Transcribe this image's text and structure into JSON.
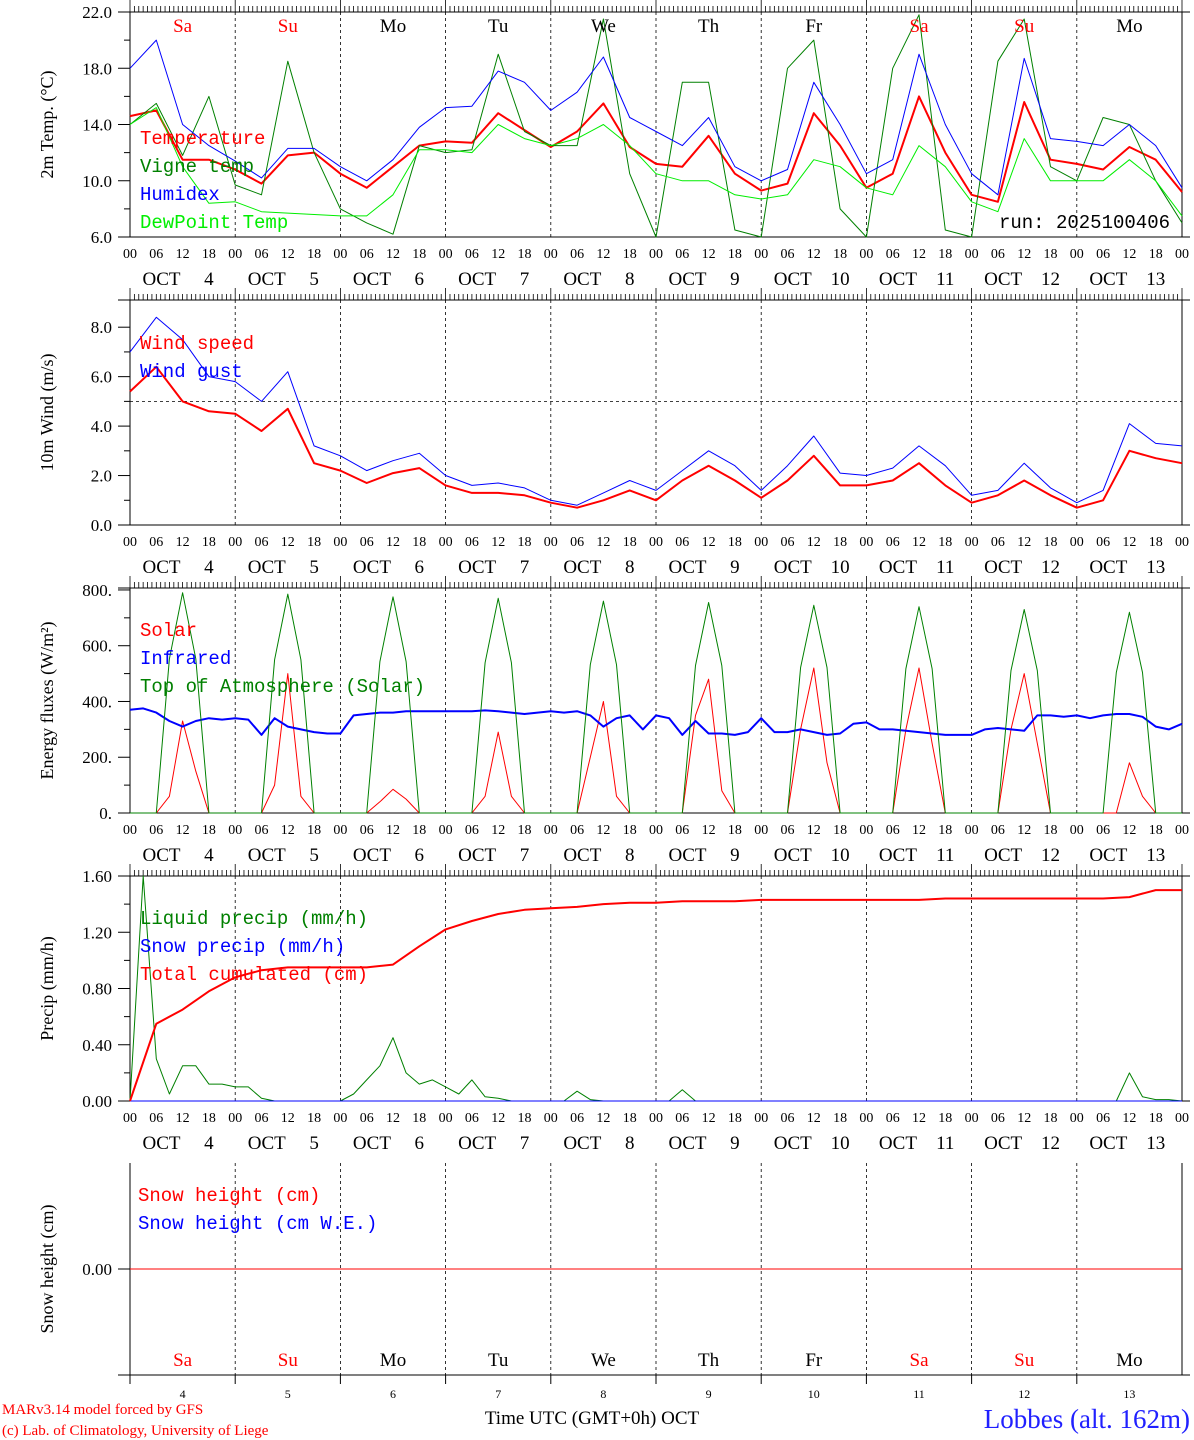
{
  "chart_data": [
    {
      "type": "line",
      "ylabel": "2m Temp. (°C)",
      "ylim": [
        6,
        22
      ],
      "yticks": [
        "6.0",
        "10.0",
        "14.0",
        "18.0",
        "22.0"
      ],
      "x_step_hours": 6,
      "annotation": "run: 2025100406",
      "series": [
        {
          "name": "Temperature",
          "color": "#ff0000",
          "width": 2,
          "values": [
            14.6,
            15.0,
            11.5,
            11.5,
            10.8,
            9.8,
            11.8,
            12.0,
            10.5,
            9.5,
            11.0,
            12.5,
            12.8,
            12.7,
            14.8,
            13.6,
            12.4,
            13.5,
            15.5,
            12.4,
            11.2,
            11.0,
            13.2,
            10.5,
            9.3,
            9.8,
            14.8,
            12.5,
            9.5,
            10.5,
            16.0,
            12.0,
            9.0,
            8.5,
            15.6,
            11.5,
            11.2,
            10.8,
            12.4,
            11.5,
            9.2
          ]
        },
        {
          "name": "Vigne temp",
          "color": "#008000",
          "width": 1,
          "values": [
            14.0,
            15.5,
            11.8,
            16.0,
            9.7,
            9.0,
            18.5,
            12.0,
            8.0,
            7.0,
            6.2,
            12.5,
            12.0,
            12.2,
            19.0,
            13.5,
            12.5,
            12.5,
            21.5,
            10.5,
            6.0,
            17.0,
            17.0,
            6.5,
            6.0,
            18.0,
            20.0,
            8.0,
            6.0,
            18.0,
            21.8,
            6.5,
            6.0,
            18.5,
            21.5,
            11.0,
            10.0,
            14.5,
            14.0,
            10.0,
            7.0
          ]
        },
        {
          "name": "Humidex",
          "color": "#0000ff",
          "width": 1,
          "values": [
            18.0,
            20.0,
            14.0,
            12.5,
            11.4,
            10.2,
            12.3,
            12.3,
            11.0,
            10.0,
            11.5,
            13.8,
            15.2,
            15.3,
            17.8,
            17.0,
            15.0,
            16.3,
            18.8,
            14.5,
            13.5,
            12.5,
            14.5,
            11.0,
            10.0,
            10.8,
            17.0,
            14.0,
            10.5,
            11.5,
            19.0,
            14.0,
            10.5,
            9.0,
            18.7,
            13.0,
            12.8,
            12.5,
            14.0,
            12.5,
            9.5
          ]
        },
        {
          "name": "DewPoint Temp",
          "color": "#00ee00",
          "width": 1,
          "values": [
            14.0,
            15.2,
            11.0,
            8.4,
            8.5,
            7.8,
            7.7,
            7.6,
            7.5,
            7.5,
            9.0,
            12.2,
            12.2,
            12.0,
            14.0,
            13.0,
            12.5,
            13.0,
            14.0,
            12.5,
            10.5,
            10.0,
            10.0,
            9.0,
            8.7,
            9.0,
            11.5,
            11.0,
            9.5,
            9.0,
            12.5,
            11.0,
            8.5,
            7.8,
            13.0,
            10.0,
            10.0,
            10.0,
            11.5,
            10.0,
            7.5
          ]
        }
      ]
    },
    {
      "type": "line",
      "ylabel": "10m Wind (m/s)",
      "ylim": [
        0,
        9.1
      ],
      "yticks": [
        "0.0",
        "2.0",
        "4.0",
        "6.0",
        "8.0"
      ],
      "reference_line": 5.0,
      "x_step_hours": 6,
      "series": [
        {
          "name": "Wind speed",
          "color": "#ff0000",
          "width": 2,
          "values": [
            5.4,
            6.4,
            5.0,
            4.6,
            4.5,
            3.8,
            4.7,
            2.5,
            2.2,
            1.7,
            2.1,
            2.3,
            1.6,
            1.3,
            1.3,
            1.2,
            0.9,
            0.7,
            1.0,
            1.4,
            1.0,
            1.8,
            2.4,
            1.8,
            1.1,
            1.8,
            2.8,
            1.6,
            1.6,
            1.8,
            2.5,
            1.6,
            0.9,
            1.2,
            1.8,
            1.2,
            0.7,
            1.0,
            3.0,
            2.7,
            2.5
          ]
        },
        {
          "name": "Wind gust",
          "color": "#0000ff",
          "width": 1,
          "values": [
            7.0,
            8.4,
            7.5,
            6.0,
            5.8,
            5.0,
            6.2,
            3.2,
            2.8,
            2.2,
            2.6,
            2.9,
            2.0,
            1.6,
            1.7,
            1.5,
            1.0,
            0.8,
            1.3,
            1.8,
            1.4,
            2.2,
            3.0,
            2.4,
            1.4,
            2.4,
            3.6,
            2.1,
            2.0,
            2.3,
            3.2,
            2.4,
            1.2,
            1.4,
            2.5,
            1.5,
            0.9,
            1.4,
            4.1,
            3.3,
            3.2
          ]
        }
      ]
    },
    {
      "type": "line",
      "ylabel": "Energy fluxes (W/m²)",
      "ylim": [
        0,
        807
      ],
      "yticks": [
        "0.",
        "200.",
        "400.",
        "600.",
        "800."
      ],
      "x_step_hours": 3,
      "series": [
        {
          "name": "Solar",
          "color": "#ff0000",
          "width": 1,
          "values": [
            0,
            0,
            0,
            60,
            330,
            150,
            0,
            0,
            0,
            0,
            0,
            100,
            500,
            60,
            0,
            0,
            0,
            0,
            0,
            40,
            85,
            50,
            0,
            0,
            0,
            0,
            0,
            60,
            290,
            60,
            0,
            0,
            0,
            0,
            0,
            200,
            400,
            60,
            0,
            0,
            0,
            0,
            0,
            350,
            480,
            80,
            0,
            0,
            0,
            0,
            0,
            300,
            520,
            180,
            0,
            0,
            0,
            0,
            0,
            300,
            520,
            250,
            0,
            0,
            0,
            0,
            0,
            300,
            500,
            250,
            0,
            0,
            0,
            0,
            0,
            0,
            180,
            60,
            0,
            0,
            0
          ]
        },
        {
          "name": "Infrared",
          "color": "#0000ff",
          "width": 2,
          "values": [
            370,
            375,
            360,
            330,
            310,
            330,
            340,
            335,
            340,
            335,
            280,
            340,
            310,
            300,
            290,
            285,
            285,
            350,
            355,
            360,
            360,
            365,
            365,
            365,
            365,
            365,
            365,
            368,
            365,
            360,
            355,
            360,
            365,
            360,
            365,
            350,
            310,
            340,
            350,
            300,
            350,
            340,
            280,
            330,
            285,
            285,
            280,
            290,
            340,
            290,
            290,
            300,
            290,
            280,
            285,
            320,
            325,
            300,
            300,
            295,
            290,
            285,
            280,
            280,
            280,
            300,
            305,
            300,
            295,
            350,
            350,
            345,
            350,
            340,
            350,
            355,
            355,
            345,
            310,
            300,
            320
          ]
        },
        {
          "name": "Top of Atmosphere (Solar)",
          "color": "#008000",
          "width": 1,
          "values": [
            0,
            0,
            0,
            553,
            790,
            553,
            0,
            0,
            0,
            0,
            0,
            550,
            785,
            550,
            0,
            0,
            0,
            0,
            0,
            543,
            775,
            543,
            0,
            0,
            0,
            0,
            0,
            539,
            770,
            539,
            0,
            0,
            0,
            0,
            0,
            532,
            760,
            532,
            0,
            0,
            0,
            0,
            0,
            529,
            755,
            529,
            0,
            0,
            0,
            0,
            0,
            522,
            745,
            522,
            0,
            0,
            0,
            0,
            0,
            518,
            740,
            518,
            0,
            0,
            0,
            0,
            0,
            511,
            730,
            511,
            0,
            0,
            0,
            0,
            0,
            504,
            720,
            504,
            0,
            0,
            0
          ]
        }
      ]
    },
    {
      "type": "line",
      "ylabel": "Precip (mm/h)",
      "ylim": [
        0,
        1.6
      ],
      "yticks": [
        "0.00",
        "0.40",
        "0.80",
        "1.20",
        "1.60"
      ],
      "x_step_hours": 3,
      "series": [
        {
          "name": "Liquid precip (mm/h)",
          "color": "#008000",
          "width": 1,
          "values": [
            0,
            1.65,
            0.3,
            0.05,
            0.25,
            0.25,
            0.12,
            0.12,
            0.1,
            0.1,
            0.02,
            0,
            0,
            0,
            0,
            0,
            0,
            0.05,
            0.15,
            0.25,
            0.45,
            0.2,
            0.12,
            0.15,
            0.1,
            0.05,
            0.15,
            0.03,
            0.02,
            0,
            0,
            0,
            0,
            0,
            0.07,
            0.01,
            0,
            0,
            0,
            0,
            0,
            0,
            0.08,
            0,
            0,
            0,
            0,
            0,
            0,
            0,
            0,
            0,
            0,
            0,
            0,
            0,
            0,
            0,
            0,
            0,
            0,
            0,
            0,
            0,
            0,
            0,
            0,
            0,
            0,
            0,
            0,
            0,
            0,
            0,
            0,
            0,
            0.2,
            0.03,
            0.01,
            0.01,
            0
          ]
        },
        {
          "name": "Snow precip (mm/h)",
          "color": "#0000ff",
          "width": 1,
          "values": [
            0,
            0,
            0,
            0,
            0,
            0,
            0,
            0,
            0,
            0,
            0,
            0,
            0,
            0,
            0,
            0,
            0,
            0,
            0,
            0,
            0,
            0,
            0,
            0,
            0,
            0,
            0,
            0,
            0,
            0,
            0,
            0,
            0,
            0,
            0,
            0,
            0,
            0,
            0,
            0,
            0,
            0,
            0,
            0,
            0,
            0,
            0,
            0,
            0,
            0,
            0,
            0,
            0,
            0,
            0,
            0,
            0,
            0,
            0,
            0,
            0,
            0,
            0,
            0,
            0,
            0,
            0,
            0,
            0,
            0,
            0,
            0,
            0,
            0,
            0,
            0,
            0,
            0,
            0,
            0,
            0
          ]
        },
        {
          "name": "Total cumulated (cm)",
          "color": "#ff0000",
          "width": 2,
          "step": 6,
          "values": [
            0,
            0.55,
            0.65,
            0.78,
            0.88,
            0.93,
            0.95,
            0.95,
            0.95,
            0.95,
            0.97,
            1.1,
            1.22,
            1.28,
            1.33,
            1.36,
            1.37,
            1.38,
            1.4,
            1.41,
            1.41,
            1.42,
            1.42,
            1.42,
            1.43,
            1.43,
            1.43,
            1.43,
            1.43,
            1.43,
            1.43,
            1.44,
            1.44,
            1.44,
            1.44,
            1.44,
            1.44,
            1.44,
            1.45,
            1.5,
            1.5
          ]
        }
      ]
    },
    {
      "type": "line",
      "ylabel": "Snow height (cm)",
      "ylim": [
        -1,
        1
      ],
      "yticks": [
        "0.00"
      ],
      "x_step_hours": 24,
      "series": [
        {
          "name": "Snow height (cm)",
          "color": "#ff0000",
          "width": 1,
          "values": [
            0,
            0,
            0,
            0,
            0,
            0,
            0,
            0,
            0,
            0,
            0
          ]
        },
        {
          "name": "Snow height (cm W.E.)",
          "color": "#0000ff",
          "width": 1,
          "values": [
            0,
            0,
            0,
            0,
            0,
            0,
            0,
            0,
            0,
            0,
            0
          ]
        }
      ]
    }
  ],
  "x_axis": {
    "hour_ticks": [
      "00",
      "06",
      "12",
      "18"
    ],
    "month": "OCT",
    "days": [
      "4",
      "5",
      "6",
      "7",
      "8",
      "9",
      "10",
      "11",
      "12",
      "13"
    ],
    "weekdays": [
      "Sa",
      "Su",
      "Mo",
      "Tu",
      "We",
      "Th",
      "Fr",
      "Sa",
      "Su",
      "Mo"
    ],
    "weekday_colors": [
      "#ff0000",
      "#ff0000",
      "#000000",
      "#000000",
      "#000000",
      "#000000",
      "#000000",
      "#ff0000",
      "#ff0000",
      "#000000"
    ],
    "label": "Time UTC (GMT+0h) OCT"
  },
  "footer": {
    "model": "MARv3.14 model forced by GFS",
    "credit": "(c) Lab. of Climatology, University of Liege",
    "station": "Lobbes (alt. 162m)"
  }
}
